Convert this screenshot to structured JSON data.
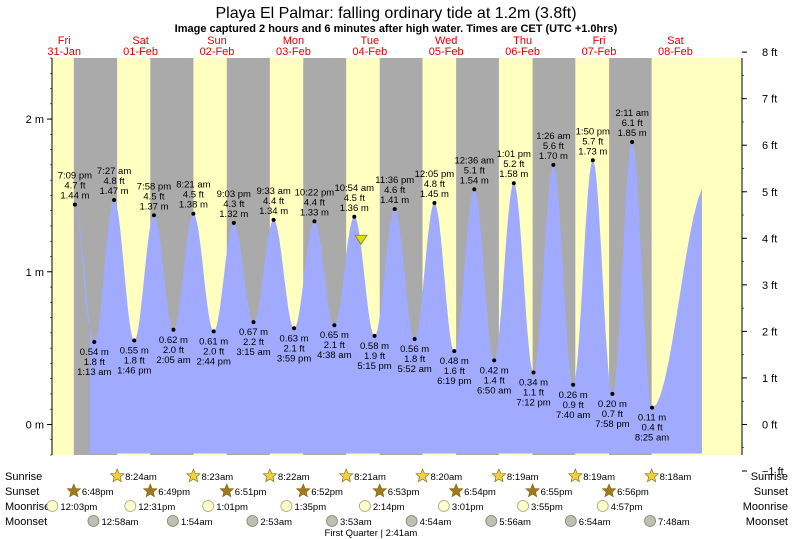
{
  "title": "Playa El Palmar: falling  ordinary tide at 1.2m (3.8ft)",
  "subtitle": "Image captured 2 hours and 6 minutes after high water. Times are CET (UTC +1.0hrs)",
  "colors": {
    "tide_fill": "#a0aaff",
    "day_bg": "#ffffc0",
    "night_bg": "#aaaaaa",
    "day_label": "#e00000",
    "current_marker": "#e0e000"
  },
  "icons": {
    "sunrise": "sun-star-icon",
    "sunset": "sunset-star-icon",
    "moonrise": "moon-circle-icon",
    "moonset": "moonset-circle-icon",
    "current": "triangle-down-icon"
  },
  "chart_data": {
    "type": "area",
    "x_unit": "days from Fri 31-Jan 00:00 CET",
    "xlim": [
      0,
      8.5
    ],
    "ylim_m": [
      -0.2,
      2.4
    ],
    "ylim_ft": [
      -1,
      8
    ],
    "left_axis": {
      "unit": "m",
      "ticks": [
        {
          "v": 0,
          "label": "0 m"
        },
        {
          "v": 1,
          "label": "1 m"
        },
        {
          "v": 2,
          "label": "2 m"
        }
      ]
    },
    "right_axis": {
      "unit": "ft",
      "ticks": [
        "−1 ft",
        "0 ft",
        "1 ft",
        "2 ft",
        "3 ft",
        "4 ft",
        "5 ft",
        "6 ft",
        "7 ft",
        "8 ft"
      ]
    },
    "days": [
      {
        "dow": "Fri",
        "date": "31-Jan"
      },
      {
        "dow": "Sat",
        "date": "01-Feb"
      },
      {
        "dow": "Sun",
        "date": "02-Feb"
      },
      {
        "dow": "Mon",
        "date": "03-Feb"
      },
      {
        "dow": "Tue",
        "date": "04-Feb"
      },
      {
        "dow": "Wed",
        "date": "05-Feb"
      },
      {
        "dow": "Thu",
        "date": "06-Feb"
      },
      {
        "dow": "Fri",
        "date": "07-Feb"
      },
      {
        "dow": "Sat",
        "date": "08-Feb"
      }
    ],
    "tides": [
      {
        "type": "high",
        "time": "7:09 pm",
        "ft": "4.7 ft",
        "m": "1.44 m",
        "d": 0.797,
        "h": 1.44
      },
      {
        "type": "low",
        "time": "1:13 am",
        "ft": "1.8 ft",
        "m": "0.54 m",
        "d": 1.051,
        "h": 0.54
      },
      {
        "type": "high",
        "time": "7:27 am",
        "ft": "4.8 ft",
        "m": "1.47 m",
        "d": 1.31,
        "h": 1.47
      },
      {
        "type": "low",
        "time": "1:46 pm",
        "ft": "1.8 ft",
        "m": "0.55 m",
        "d": 1.574,
        "h": 0.55
      },
      {
        "type": "high",
        "time": "7:58 pm",
        "ft": "4.5 ft",
        "m": "1.37 m",
        "d": 1.832,
        "h": 1.37
      },
      {
        "type": "low",
        "time": "2:05 am",
        "ft": "2.0 ft",
        "m": "0.62 m",
        "d": 2.087,
        "h": 0.62
      },
      {
        "type": "high",
        "time": "8:21 am",
        "ft": "4.5 ft",
        "m": "1.38 m",
        "d": 2.348,
        "h": 1.38
      },
      {
        "type": "low",
        "time": "2:44 pm",
        "ft": "2.0 ft",
        "m": "0.61 m",
        "d": 2.614,
        "h": 0.61
      },
      {
        "type": "high",
        "time": "9:03 pm",
        "ft": "4.3 ft",
        "m": "1.32 m",
        "d": 2.877,
        "h": 1.32
      },
      {
        "type": "low",
        "time": "3:15 am",
        "ft": "2.2 ft",
        "m": "0.67 m",
        "d": 3.135,
        "h": 0.67
      },
      {
        "type": "high",
        "time": "9:33 am",
        "ft": "4.4 ft",
        "m": "1.34 m",
        "d": 3.398,
        "h": 1.34
      },
      {
        "type": "low",
        "time": "3:59 pm",
        "ft": "2.1 ft",
        "m": "0.63 m",
        "d": 3.666,
        "h": 0.63
      },
      {
        "type": "high",
        "time": "10:22 pm",
        "ft": "4.4 ft",
        "m": "1.33 m",
        "d": 3.932,
        "h": 1.33
      },
      {
        "type": "low",
        "time": "4:38 am",
        "ft": "2.1 ft",
        "m": "0.65 m",
        "d": 4.193,
        "h": 0.65
      },
      {
        "type": "high",
        "time": "10:54 am",
        "ft": "4.5 ft",
        "m": "1.36 m",
        "d": 4.454,
        "h": 1.36
      },
      {
        "type": "low",
        "time": "5:15 pm",
        "ft": "1.9 ft",
        "m": "0.58 m",
        "d": 4.719,
        "h": 0.58
      },
      {
        "type": "high",
        "time": "11:36 pm",
        "ft": "4.6 ft",
        "m": "1.41 m",
        "d": 4.983,
        "h": 1.41
      },
      {
        "type": "low",
        "time": "5:52 am",
        "ft": "1.8 ft",
        "m": "0.56 m",
        "d": 5.244,
        "h": 0.56
      },
      {
        "type": "high",
        "time": "12:05 pm",
        "ft": "4.8 ft",
        "m": "1.45 m",
        "d": 5.503,
        "h": 1.45
      },
      {
        "type": "low",
        "time": "6:19 pm",
        "ft": "1.6 ft",
        "m": "0.48 m",
        "d": 5.763,
        "h": 0.48
      },
      {
        "type": "high",
        "time": "12:36 am",
        "ft": "5.1 ft",
        "m": "1.54 m",
        "d": 6.025,
        "h": 1.54
      },
      {
        "type": "low",
        "time": "6:50 am",
        "ft": "1.4 ft",
        "m": "0.42 m",
        "d": 6.285,
        "h": 0.42
      },
      {
        "type": "high",
        "time": "1:01 pm",
        "ft": "5.2 ft",
        "m": "1.58 m",
        "d": 6.542,
        "h": 1.58
      },
      {
        "type": "low",
        "time": "7:12 pm",
        "ft": "1.1 ft",
        "m": "0.34 m",
        "d": 6.8,
        "h": 0.34
      },
      {
        "type": "high",
        "time": "1:26 am",
        "ft": "5.6 ft",
        "m": "1.70 m",
        "d": 7.06,
        "h": 1.7
      },
      {
        "type": "low",
        "time": "7:40 am",
        "ft": "0.9 ft",
        "m": "0.26 m",
        "d": 7.319,
        "h": 0.26
      },
      {
        "type": "high",
        "time": "1:50 pm",
        "ft": "5.7 ft",
        "m": "1.73 m",
        "d": 7.576,
        "h": 1.73
      },
      {
        "type": "low",
        "time": "7:58 pm",
        "ft": "0.7 ft",
        "m": "0.20 m",
        "d": 7.832,
        "h": 0.2
      },
      {
        "type": "high",
        "time": "2:11 am",
        "ft": "6.1 ft",
        "m": "1.85 m",
        "d": 8.091,
        "h": 1.85
      },
      {
        "type": "low",
        "time": "8:25 am",
        "ft": "0.4 ft",
        "m": "0.11 m",
        "d": 8.351,
        "h": 0.11
      }
    ],
    "current": {
      "d": 4.542,
      "h": 1.2
    }
  },
  "sun_moon": {
    "row_labels": {
      "sunrise": "Sunrise",
      "sunset": "Sunset",
      "moonrise": "Moonrise",
      "moonset": "Moonset"
    },
    "sunrise": [
      {
        "time": "8:24am",
        "d": 1.35
      },
      {
        "time": "8:23am",
        "d": 2.349
      },
      {
        "time": "8:22am",
        "d": 3.349
      },
      {
        "time": "8:21am",
        "d": 4.348
      },
      {
        "time": "8:20am",
        "d": 5.347
      },
      {
        "time": "8:19am",
        "d": 6.347
      },
      {
        "time": "8:19am",
        "d": 7.347
      },
      {
        "time": "8:18am",
        "d": 8.346
      }
    ],
    "sunset": [
      {
        "time": "6:48pm",
        "d": 0.783
      },
      {
        "time": "6:49pm",
        "d": 1.784
      },
      {
        "time": "6:51pm",
        "d": 2.785
      },
      {
        "time": "6:52pm",
        "d": 3.786
      },
      {
        "time": "6:53pm",
        "d": 4.787
      },
      {
        "time": "6:54pm",
        "d": 5.787
      },
      {
        "time": "6:55pm",
        "d": 6.788
      },
      {
        "time": "6:56pm",
        "d": 7.789
      }
    ],
    "moonrise": [
      {
        "time": "12:03pm",
        "d": 0.502
      },
      {
        "time": "12:31pm",
        "d": 1.522
      },
      {
        "time": "1:01pm",
        "d": 2.542
      },
      {
        "time": "1:35pm",
        "d": 3.566
      },
      {
        "time": "2:14pm",
        "d": 4.593
      },
      {
        "time": "3:01pm",
        "d": 5.626
      },
      {
        "time": "3:55pm",
        "d": 6.663
      },
      {
        "time": "4:57pm",
        "d": 7.706
      }
    ],
    "moonset": [
      {
        "time": "12:58am",
        "d": 1.04
      },
      {
        "time": "1:54am",
        "d": 2.079
      },
      {
        "time": "2:53am",
        "d": 3.12
      },
      {
        "time": "3:53am",
        "d": 4.162
      },
      {
        "time": "4:54am",
        "d": 5.204
      },
      {
        "time": "5:56am",
        "d": 6.247
      },
      {
        "time": "6:54am",
        "d": 7.288
      },
      {
        "time": "7:48am",
        "d": 8.325
      }
    ],
    "moon_phase": {
      "text": "First Quarter | 2:41am",
      "d": 5.112
    }
  }
}
